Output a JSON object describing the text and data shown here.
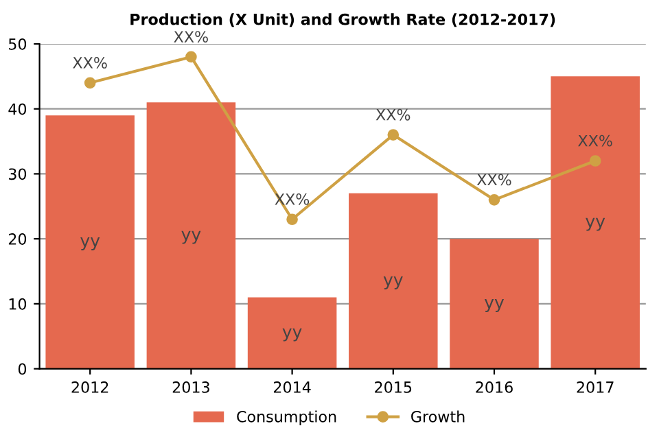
{
  "chart_data": {
    "type": "bar",
    "title": "Production (X Unit) and Growth Rate (2012-2017)",
    "categories": [
      "2012",
      "2013",
      "2014",
      "2015",
      "2016",
      "2017"
    ],
    "series": [
      {
        "name": "Consumption",
        "color": "#e5694f",
        "values": [
          39,
          41,
          11,
          27,
          20,
          45
        ],
        "value_labels": [
          "yy",
          "yy",
          "yy",
          "yy",
          "yy",
          "yy"
        ]
      },
      {
        "name": "Growth",
        "type": "line",
        "color": "#cfa144",
        "values": [
          44,
          48,
          23,
          36,
          26,
          32
        ],
        "value_labels": [
          "XX%",
          "XX%",
          "XX%",
          "XX%",
          "XX%",
          "XX%"
        ],
        "marker": "circle"
      }
    ],
    "ylim": [
      0,
      50
    ],
    "yticks": [
      0,
      10,
      20,
      30,
      40,
      50
    ],
    "grid": "y",
    "legend": "bottom"
  }
}
